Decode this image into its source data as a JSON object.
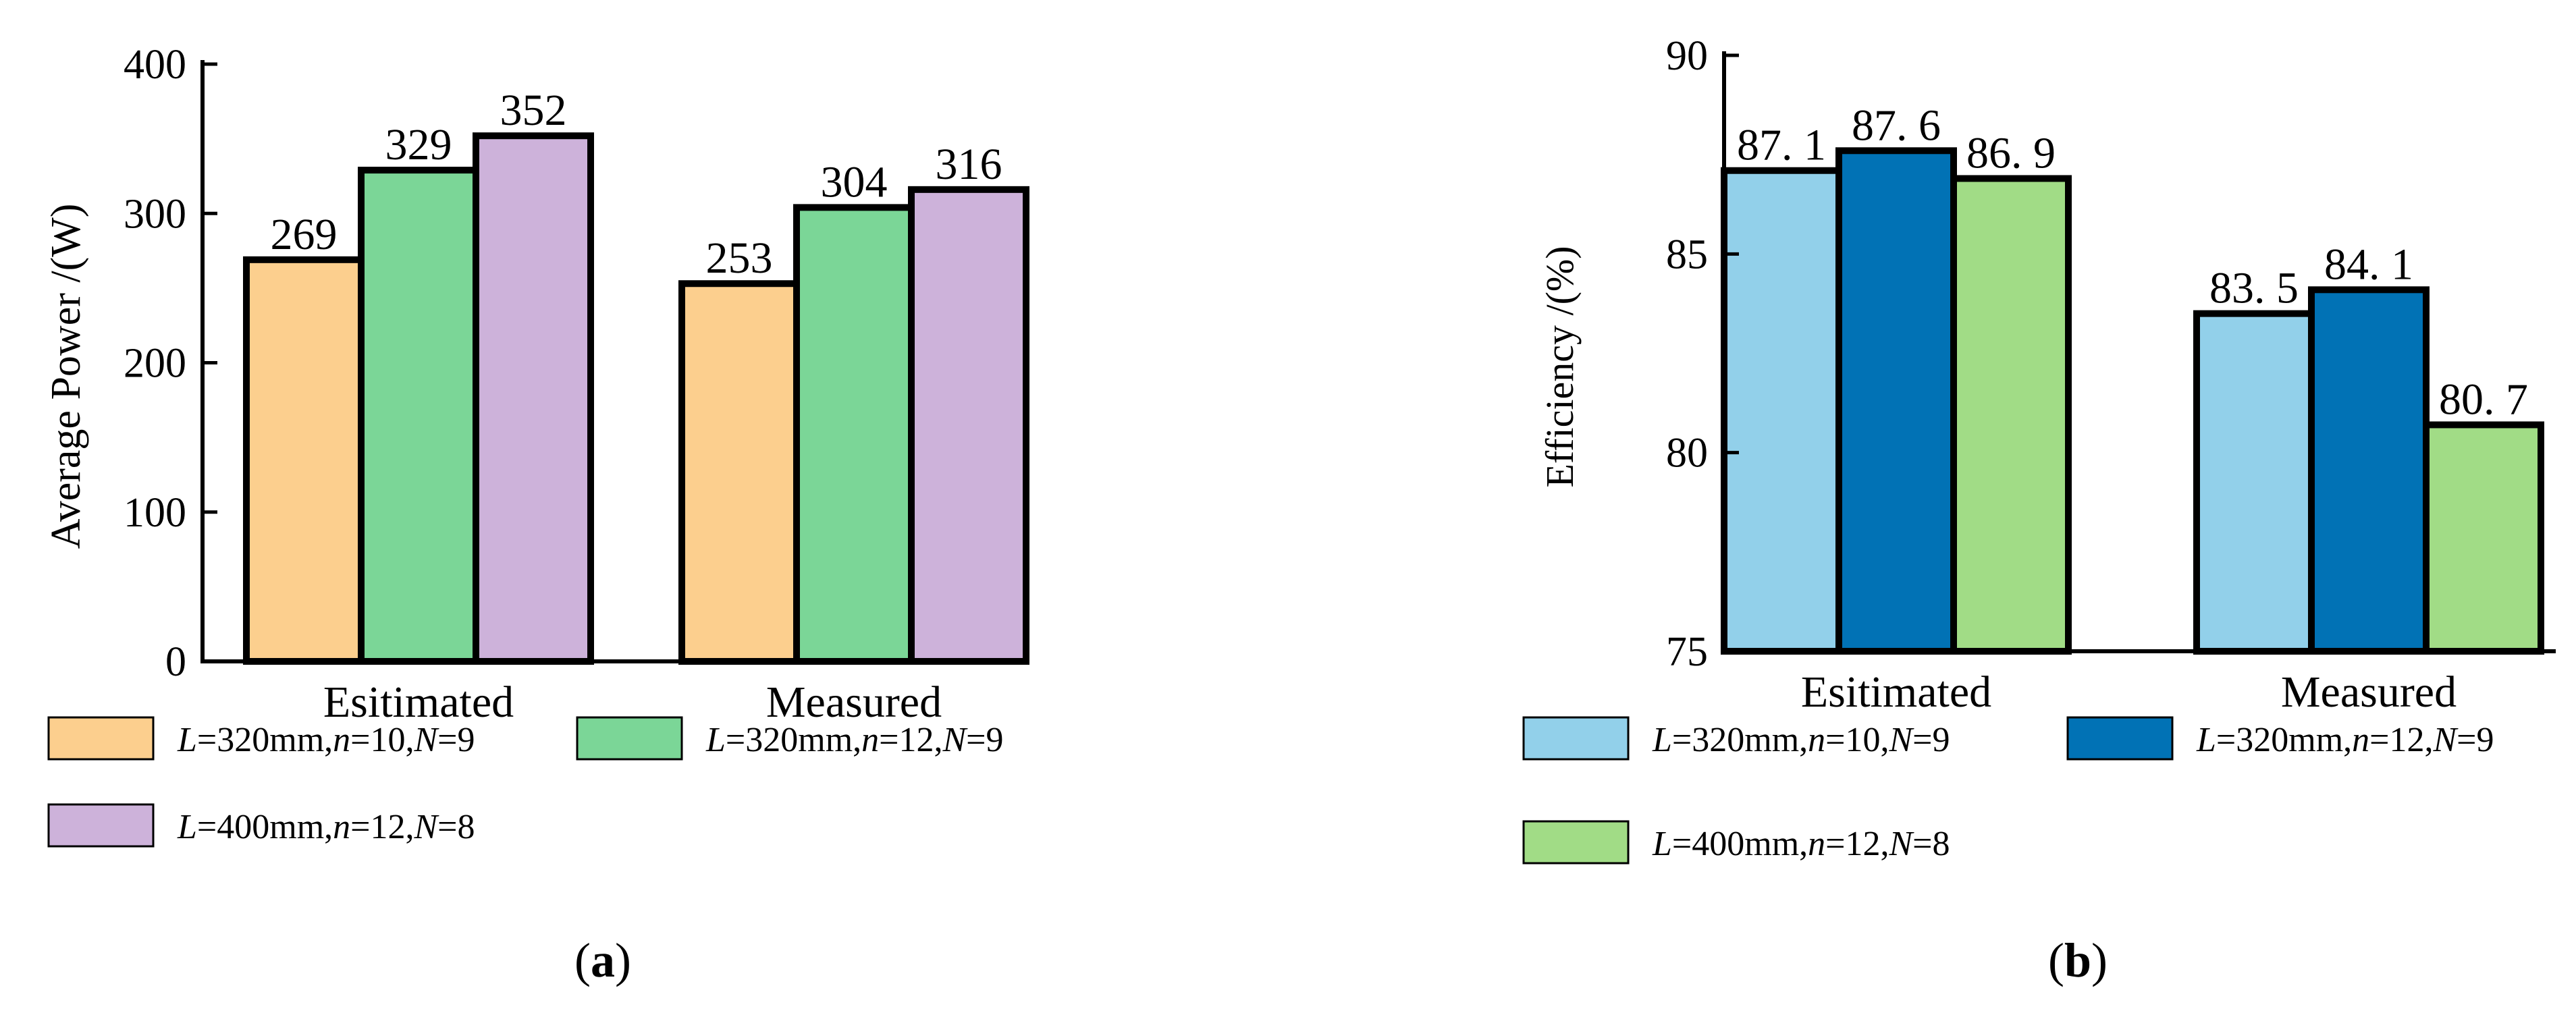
{
  "chart_data": [
    {
      "panel": "a",
      "panel_label": {
        "open": "(",
        "letter": "a",
        "close": ")"
      },
      "type": "bar",
      "title": "",
      "xlabel": "",
      "ylabel": "Average Power /(W)",
      "ylim": [
        0,
        400
      ],
      "yticks": [
        "0",
        "100",
        "200",
        "300",
        "400"
      ],
      "grid": false,
      "legend_position": "bottom",
      "categories": [
        "Esitimated",
        "Measured"
      ],
      "series": [
        {
          "name": "L=320mm,n=10,N=9",
          "color": "#FCCF8E",
          "values": [
            269,
            253
          ],
          "labels": [
            "269",
            "253"
          ],
          "legend": [
            {
              "t": "L",
              "i": true
            },
            {
              "t": "=320mm,",
              "i": false
            },
            {
              "t": "n",
              "i": true
            },
            {
              "t": "=10,",
              "i": false
            },
            {
              "t": "N",
              "i": true
            },
            {
              "t": "=9",
              "i": false
            }
          ]
        },
        {
          "name": "L=320mm,n=12,N=9",
          "color": "#7BD697",
          "values": [
            329,
            304
          ],
          "labels": [
            "329",
            "304"
          ],
          "legend": [
            {
              "t": "L",
              "i": true
            },
            {
              "t": "=320mm,",
              "i": false
            },
            {
              "t": "n",
              "i": true
            },
            {
              "t": "=12,",
              "i": false
            },
            {
              "t": "N",
              "i": true
            },
            {
              "t": "=9",
              "i": false
            }
          ]
        },
        {
          "name": "L=400mm,n=12,N=8",
          "color": "#CDB2DA",
          "values": [
            352,
            316
          ],
          "labels": [
            "352",
            "316"
          ],
          "legend": [
            {
              "t": "L",
              "i": true
            },
            {
              "t": "=400mm,",
              "i": false
            },
            {
              "t": "n",
              "i": true
            },
            {
              "t": "=12,",
              "i": false
            },
            {
              "t": "N",
              "i": true
            },
            {
              "t": "=8",
              "i": false
            }
          ]
        }
      ]
    },
    {
      "panel": "b",
      "panel_label": {
        "open": "(",
        "letter": "b",
        "close": ")"
      },
      "type": "bar",
      "title": "",
      "xlabel": "",
      "ylabel": "Efficiency /(%)",
      "ylim": [
        75,
        90
      ],
      "yticks": [
        "75",
        "80",
        "85",
        "90"
      ],
      "grid": false,
      "legend_position": "bottom",
      "categories": [
        "Esitimated",
        "Measured"
      ],
      "series": [
        {
          "name": "L=320mm,n=10,N=9",
          "color": "#92D0EA",
          "values": [
            87.1,
            83.5
          ],
          "labels": [
            "87. 1",
            "83. 5"
          ],
          "legend": [
            {
              "t": "L",
              "i": true
            },
            {
              "t": "=320mm,",
              "i": false
            },
            {
              "t": "n",
              "i": true
            },
            {
              "t": "=10,",
              "i": false
            },
            {
              "t": "N",
              "i": true
            },
            {
              "t": "=9",
              "i": false
            }
          ]
        },
        {
          "name": "L=320mm,n=12,N=9",
          "color": "#0172B5",
          "values": [
            87.6,
            84.1
          ],
          "labels": [
            "87. 6",
            "84. 1"
          ],
          "legend": [
            {
              "t": "L",
              "i": true
            },
            {
              "t": "=320mm,",
              "i": false
            },
            {
              "t": "n",
              "i": true
            },
            {
              "t": "=12,",
              "i": false
            },
            {
              "t": "N",
              "i": true
            },
            {
              "t": "=9",
              "i": false
            }
          ]
        },
        {
          "name": "L=400mm,n=12,N=8",
          "color": "#A1DC86",
          "values": [
            86.9,
            80.7
          ],
          "labels": [
            "86. 9",
            "80. 7"
          ],
          "legend": [
            {
              "t": "L",
              "i": true
            },
            {
              "t": "=400mm,",
              "i": false
            },
            {
              "t": "n",
              "i": true
            },
            {
              "t": "=12,",
              "i": false
            },
            {
              "t": "N",
              "i": true
            },
            {
              "t": "=8",
              "i": false
            }
          ]
        }
      ]
    }
  ]
}
